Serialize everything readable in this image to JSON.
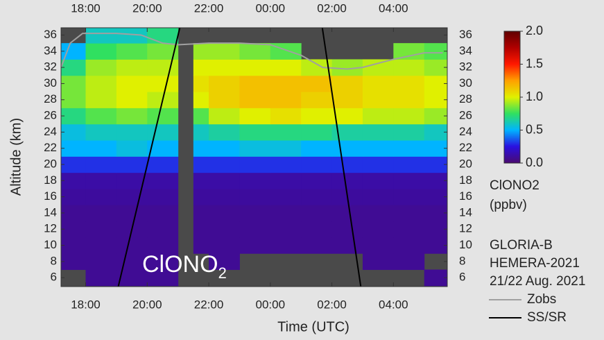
{
  "chart_data": {
    "type": "heatmap",
    "xlabel": "Time (UTC)",
    "ylabel": "Altitude (km)",
    "annotation": {
      "text": "ClONO",
      "subscript": "2"
    },
    "xlim": [
      17.2,
      29.75
    ],
    "ylim": [
      4.9,
      36.9
    ],
    "xticks": [
      {
        "value": 18,
        "label": "18:00"
      },
      {
        "value": 20,
        "label": "20:00"
      },
      {
        "value": 22,
        "label": "22:00"
      },
      {
        "value": 24,
        "label": "00:00"
      },
      {
        "value": 26,
        "label": "02:00"
      },
      {
        "value": 28,
        "label": "04:00"
      }
    ],
    "yticks": [
      6,
      8,
      10,
      12,
      14,
      16,
      18,
      20,
      22,
      24,
      26,
      28,
      30,
      32,
      34,
      36
    ],
    "x_bins": [
      17.2,
      18,
      19,
      20,
      21,
      21.5,
      22,
      23,
      24,
      25,
      26,
      27,
      28,
      29,
      29.75
    ],
    "y_bins": [
      5,
      7,
      9,
      11,
      13,
      15,
      17,
      19,
      21,
      23,
      25,
      27,
      29,
      31,
      33,
      35,
      37
    ],
    "z": [
      [
        null,
        0.08,
        0.08,
        0.08,
        null,
        null,
        null,
        null,
        null,
        null,
        null,
        null,
        null,
        0.08
      ],
      [
        0.08,
        0.08,
        0.08,
        0.08,
        null,
        null,
        0.08,
        null,
        null,
        null,
        null,
        0.08,
        0.08,
        null
      ],
      [
        0.08,
        0.08,
        0.08,
        0.08,
        null,
        0.08,
        0.08,
        0.08,
        0.08,
        0.08,
        0.08,
        0.08,
        0.08,
        0.08
      ],
      [
        0.08,
        0.08,
        0.08,
        0.08,
        null,
        0.08,
        0.08,
        0.08,
        0.08,
        0.08,
        0.08,
        0.08,
        0.08,
        0.08
      ],
      [
        0.08,
        0.08,
        0.08,
        0.08,
        null,
        0.08,
        0.08,
        0.08,
        0.08,
        0.08,
        0.08,
        0.08,
        0.08,
        0.08
      ],
      [
        0.1,
        0.1,
        0.1,
        0.1,
        null,
        0.1,
        0.1,
        0.1,
        0.1,
        0.1,
        0.1,
        0.1,
        0.1,
        0.1
      ],
      [
        0.12,
        0.12,
        0.12,
        0.12,
        null,
        0.12,
        0.12,
        0.12,
        0.12,
        0.12,
        0.12,
        0.12,
        0.12,
        0.12
      ],
      [
        0.3,
        0.3,
        0.3,
        0.3,
        null,
        0.3,
        0.3,
        0.3,
        0.3,
        0.3,
        0.3,
        0.3,
        0.3,
        0.3
      ],
      [
        0.5,
        0.5,
        0.55,
        0.5,
        null,
        0.5,
        0.5,
        0.55,
        0.55,
        0.5,
        0.5,
        0.5,
        0.5,
        0.5
      ],
      [
        0.55,
        0.6,
        0.6,
        0.6,
        null,
        0.6,
        0.65,
        0.7,
        0.7,
        0.7,
        0.65,
        0.65,
        0.65,
        0.6
      ],
      [
        0.7,
        0.8,
        0.85,
        0.8,
        null,
        0.8,
        0.95,
        1.0,
        1.05,
        1.0,
        1.0,
        0.95,
        0.95,
        0.9
      ],
      [
        0.85,
        0.95,
        1.0,
        0.95,
        null,
        1.0,
        1.1,
        1.15,
        1.15,
        1.1,
        1.1,
        1.05,
        1.05,
        1.0
      ],
      [
        0.85,
        0.95,
        1.0,
        1.0,
        null,
        1.05,
        1.1,
        1.15,
        1.15,
        1.15,
        1.1,
        1.05,
        1.05,
        1.0
      ],
      [
        0.7,
        0.9,
        0.95,
        0.95,
        null,
        1.0,
        1.0,
        1.0,
        1.0,
        0.95,
        0.9,
        0.95,
        0.95,
        0.9
      ],
      [
        0.5,
        0.75,
        0.8,
        0.85,
        null,
        0.9,
        0.9,
        0.85,
        0.8,
        null,
        null,
        null,
        0.85,
        0.8
      ],
      [
        null,
        0.6,
        0.6,
        0.7,
        null,
        null,
        null,
        null,
        null,
        null,
        null,
        null,
        null,
        null
      ]
    ],
    "zlim": [
      0,
      2
    ],
    "zticks": [
      {
        "value": 0,
        "label": "0.0"
      },
      {
        "value": 0.5,
        "label": "0.5"
      },
      {
        "value": 1,
        "label": "1.0"
      },
      {
        "value": 1.5,
        "label": "1.5"
      },
      {
        "value": 2,
        "label": "2.0"
      }
    ],
    "colorscale": [
      "#4a0a70",
      "#2a10e0",
      "#00b4ff",
      "#30e060",
      "#e0f000",
      "#ffa000",
      "#ff1800",
      "#b00000",
      "#600000"
    ],
    "null_color": "#4a4a4a",
    "colorbar_label": [
      "ClONO2",
      "(ppbv)"
    ],
    "notes": [
      "GLORIA-B",
      "HEMERA-2021",
      "21/22 Aug. 2021"
    ],
    "series": [
      {
        "name": "Zobs",
        "color": "#a0a0a0",
        "x": [
          17.2,
          17.5,
          17.9,
          19,
          19.8,
          20.5,
          21,
          22,
          23,
          24,
          25,
          25.7,
          26.5,
          27,
          28,
          29,
          29.6
        ],
        "values": [
          32,
          35,
          36.2,
          36.2,
          36,
          35,
          34.8,
          35,
          35,
          34.8,
          33.5,
          32,
          31.8,
          32,
          33,
          33.8,
          33.8
        ]
      },
      {
        "name": "SS/SR",
        "color": "#000000",
        "x": [
          19.06,
          21.06,
          null,
          25.69,
          26.94
        ],
        "values": [
          4.9,
          36.9,
          null,
          36.9,
          4.9
        ]
      }
    ]
  }
}
